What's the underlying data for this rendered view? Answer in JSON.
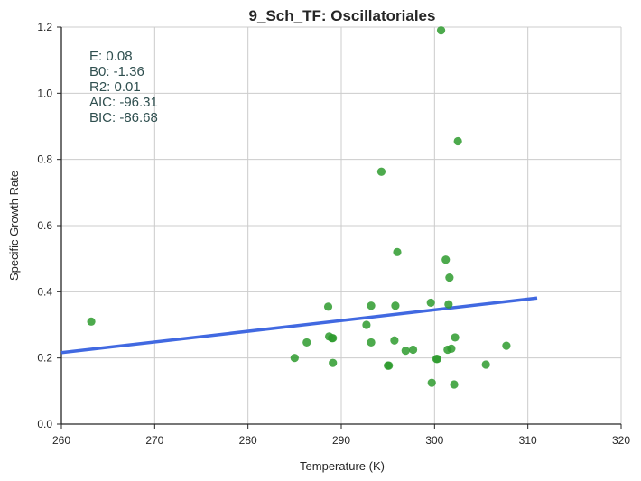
{
  "chart_data": {
    "type": "scatter",
    "title": "9_Sch_TF: Oscillatoriales",
    "xlabel": "Temperature (K)",
    "ylabel": "Specific Growth Rate",
    "xlim": [
      260,
      320
    ],
    "ylim": [
      0.0,
      1.2
    ],
    "xticks": [
      "260",
      "270",
      "280",
      "290",
      "300",
      "310",
      "320"
    ],
    "yticks": [
      "0.0",
      "0.2",
      "0.4",
      "0.6",
      "0.8",
      "1.0",
      "1.2"
    ],
    "grid": true,
    "points_color": "#2e9b2e",
    "fit_color": "#4169e1",
    "points": [
      {
        "x": 263.2,
        "y": 0.31
      },
      {
        "x": 285.0,
        "y": 0.2
      },
      {
        "x": 286.3,
        "y": 0.247
      },
      {
        "x": 288.6,
        "y": 0.355
      },
      {
        "x": 288.7,
        "y": 0.265
      },
      {
        "x": 289.0,
        "y": 0.26
      },
      {
        "x": 289.1,
        "y": 0.26
      },
      {
        "x": 289.1,
        "y": 0.185
      },
      {
        "x": 292.7,
        "y": 0.3
      },
      {
        "x": 293.2,
        "y": 0.358
      },
      {
        "x": 293.2,
        "y": 0.247
      },
      {
        "x": 294.3,
        "y": 0.763
      },
      {
        "x": 295.0,
        "y": 0.177
      },
      {
        "x": 295.1,
        "y": 0.177
      },
      {
        "x": 295.7,
        "y": 0.253
      },
      {
        "x": 295.8,
        "y": 0.358
      },
      {
        "x": 296.0,
        "y": 0.52
      },
      {
        "x": 296.9,
        "y": 0.222
      },
      {
        "x": 297.7,
        "y": 0.225
      },
      {
        "x": 299.6,
        "y": 0.367
      },
      {
        "x": 299.7,
        "y": 0.125
      },
      {
        "x": 300.2,
        "y": 0.197
      },
      {
        "x": 300.3,
        "y": 0.197
      },
      {
        "x": 300.7,
        "y": 1.19
      },
      {
        "x": 301.2,
        "y": 0.497
      },
      {
        "x": 301.4,
        "y": 0.225
      },
      {
        "x": 301.5,
        "y": 0.362
      },
      {
        "x": 301.6,
        "y": 0.443
      },
      {
        "x": 301.8,
        "y": 0.228
      },
      {
        "x": 302.1,
        "y": 0.12
      },
      {
        "x": 302.2,
        "y": 0.262
      },
      {
        "x": 302.5,
        "y": 0.855
      },
      {
        "x": 305.5,
        "y": 0.18
      },
      {
        "x": 307.7,
        "y": 0.237
      }
    ],
    "fit_line": {
      "x": [
        260,
        311
      ],
      "y": [
        0.216,
        0.381
      ]
    },
    "annotation": [
      "E:  0.08",
      "B0:  -1.36",
      "R2:  0.01",
      "AIC: -96.31",
      "BIC: -86.68"
    ]
  }
}
